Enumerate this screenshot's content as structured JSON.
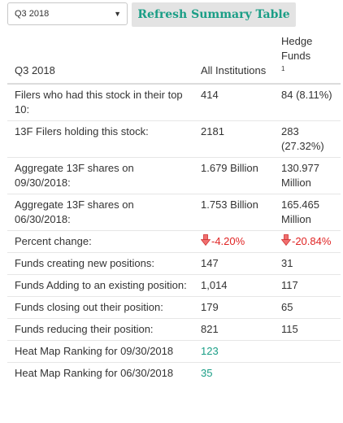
{
  "toolbar": {
    "quarter_select": "Q3 2018",
    "refresh_label": "Refresh Summary Table"
  },
  "table": {
    "headers": {
      "label": "Q3 2018",
      "all": "All Institutions",
      "hf": "Hedge Funds",
      "hf_footnote": "1"
    },
    "rows": [
      {
        "label": "Filers who had this stock in their top 10:",
        "all": "414",
        "hf": "84 (8.11%)"
      },
      {
        "label": "13F Filers holding this stock:",
        "all": "2181",
        "hf": "283 (27.32%)"
      },
      {
        "label": "Aggregate 13F shares on 09/30/2018:",
        "all": "1.679 Billion",
        "hf": "130.977 Million"
      },
      {
        "label": "Aggregate 13F shares on 06/30/2018:",
        "all": "1.753 Billion",
        "hf": "165.465 Million"
      },
      {
        "label": "Percent change:",
        "all": "-4.20%",
        "hf": "-20.84%",
        "type": "negative",
        "all_icon": "down-arrow-icon",
        "hf_icon": "down-arrow-icon",
        "color": "#e02424"
      },
      {
        "label": "Funds creating new positions:",
        "all": "147",
        "hf": "31"
      },
      {
        "label": "Funds Adding to an existing position:",
        "all": "1,014",
        "hf": "117"
      },
      {
        "label": "Funds closing out their position:",
        "all": "179",
        "hf": "65"
      },
      {
        "label": "Funds reducing their position:",
        "all": "821",
        "hf": "115"
      },
      {
        "label": "Heat Map Ranking for 09/30/2018",
        "all": "123",
        "hf": "",
        "type": "link",
        "color": "#1a9e86"
      },
      {
        "label": "Heat Map Ranking for 06/30/2018",
        "all": "35",
        "hf": "",
        "type": "link",
        "color": "#1a9e86"
      }
    ]
  }
}
